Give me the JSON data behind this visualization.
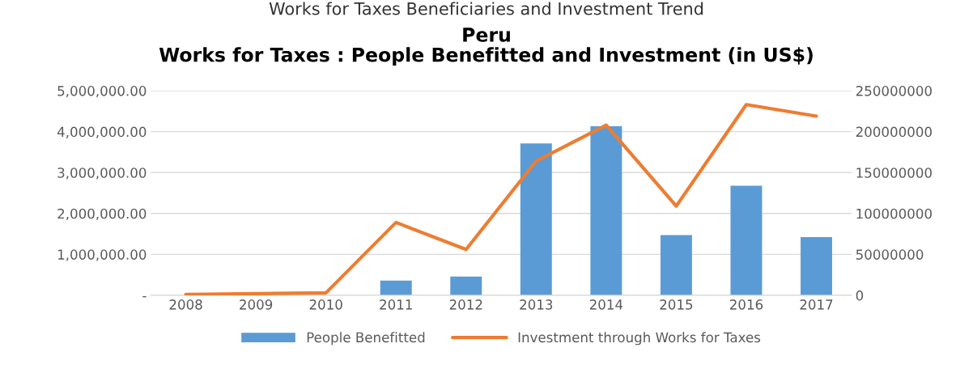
{
  "chart_data": {
    "type": "bar",
    "title": "Peru\nWorks for Taxes : People Benefitted and Investment (in US$)",
    "annotations": [
      "Works for Taxes Beneficiaries and Investment Trend"
    ],
    "categories": [
      "2008",
      "2009",
      "2010",
      "2011",
      "2012",
      "2013",
      "2014",
      "2015",
      "2016",
      "2017"
    ],
    "series": [
      {
        "name": "People Benefitted",
        "color": "#5b9bd5",
        "values": [
          0,
          0,
          0,
          360000,
          460000,
          3710000,
          4130000,
          1470000,
          2680000,
          1420000
        ]
      },
      {
        "name": "Investment through Works for Taxes",
        "type": "line",
        "axis": "y2",
        "color": "#ed7d31",
        "values": [
          1000000,
          2000000,
          3000000,
          89000000,
          56000000,
          164000000,
          208000000,
          109000000,
          233000000,
          219000000
        ]
      }
    ],
    "ylim": [
      0,
      5000000
    ],
    "yticks": [
      {
        "value": 0,
        "label": "-"
      },
      {
        "value": 1000000,
        "label": "1,000,000.00"
      },
      {
        "value": 2000000,
        "label": "2,000,000.00"
      },
      {
        "value": 3000000,
        "label": "3,000,000.00"
      },
      {
        "value": 4000000,
        "label": "4,000,000.00"
      },
      {
        "value": 5000000,
        "label": "5,000,000.00"
      }
    ],
    "y2lim": [
      0,
      250000000
    ],
    "y2ticks": [
      0,
      50000000,
      100000000,
      150000000,
      200000000,
      250000000
    ],
    "grid": "y",
    "legend": "bottom"
  }
}
